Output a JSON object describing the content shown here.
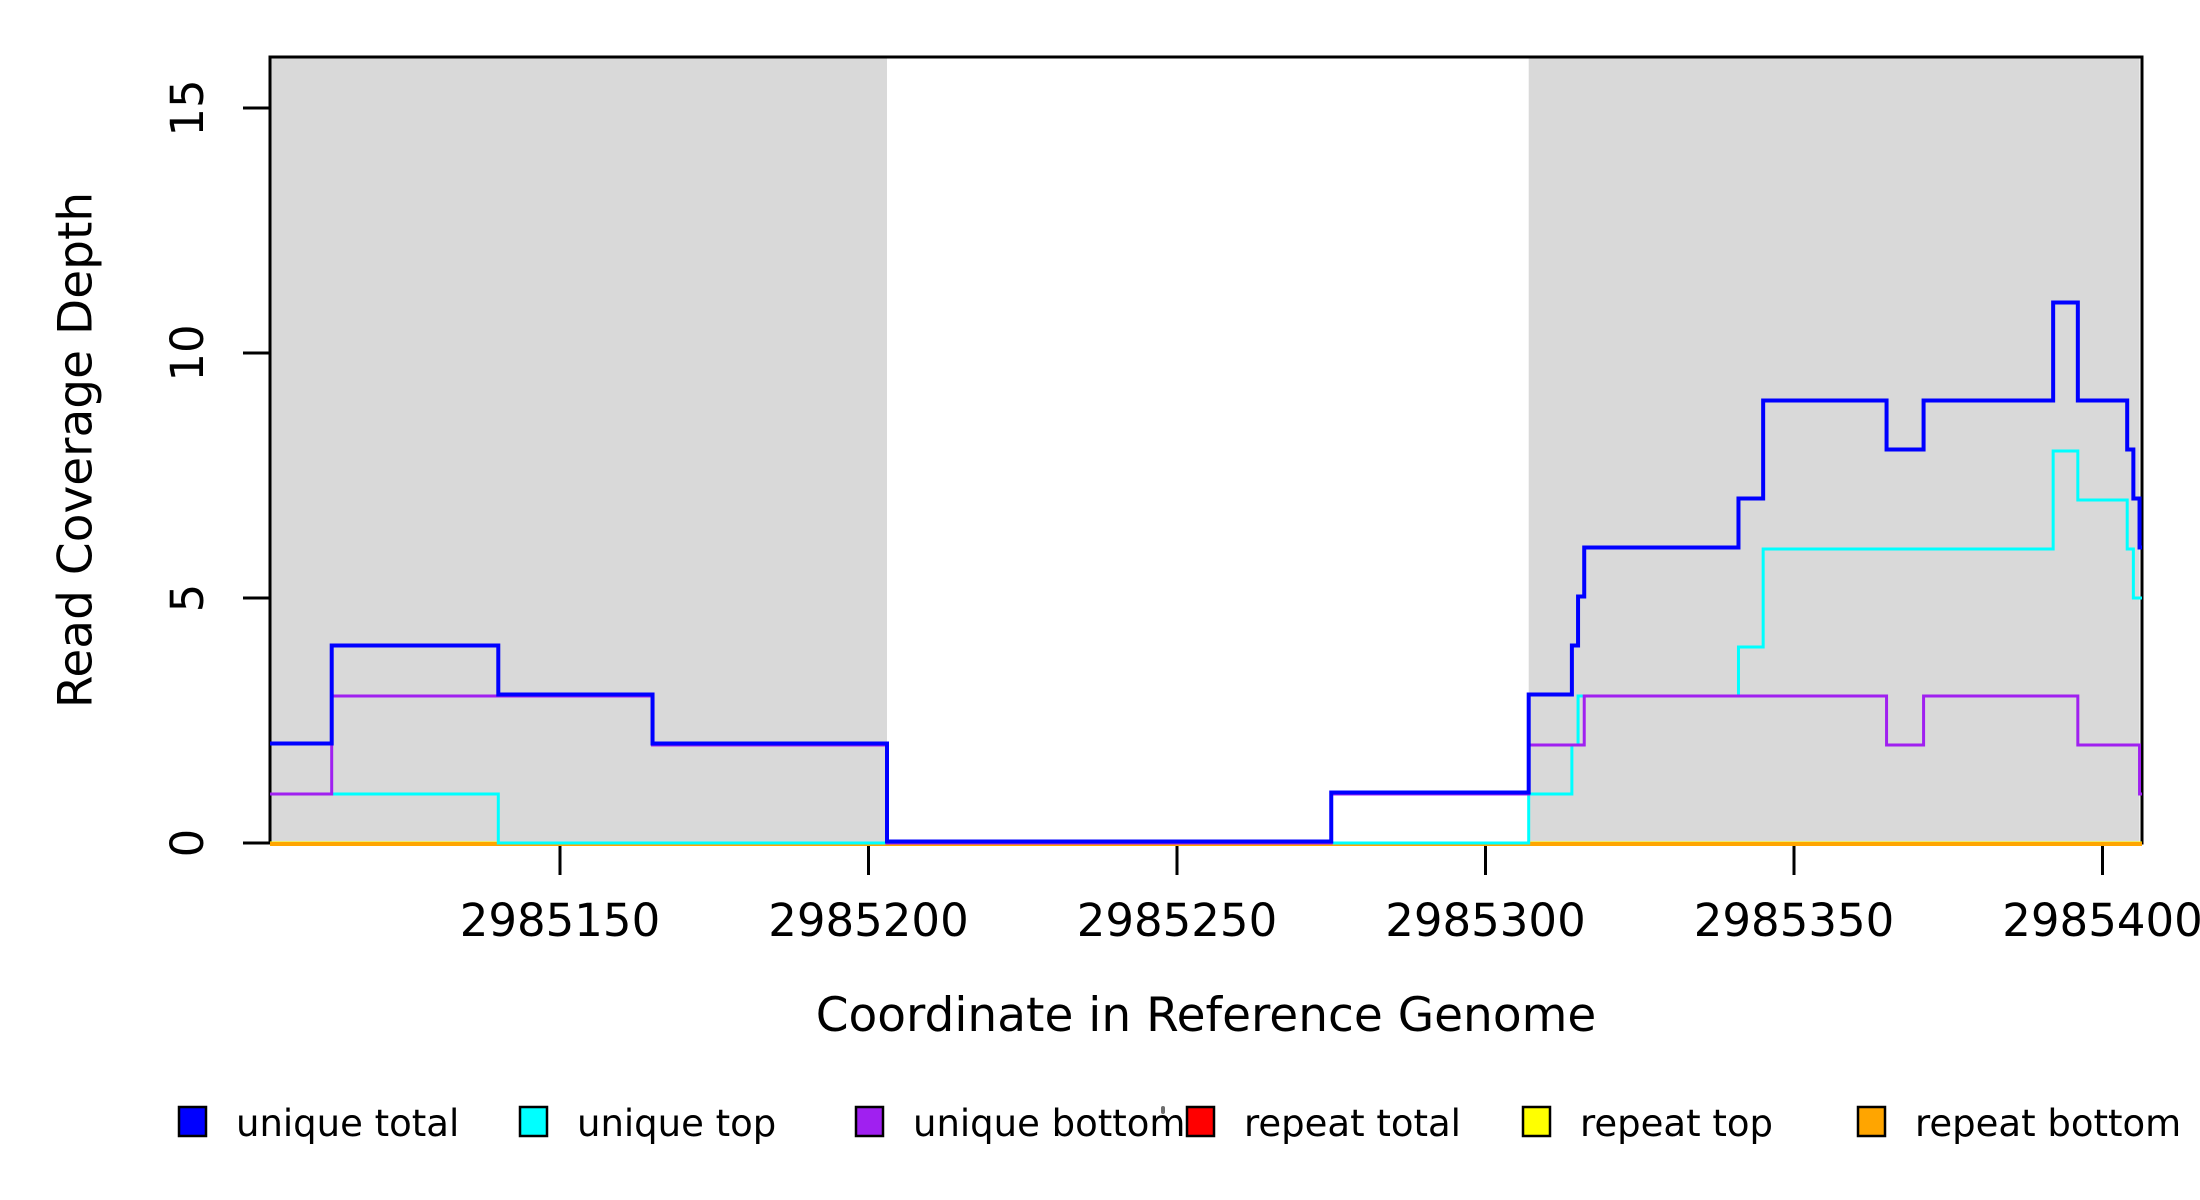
{
  "chart_data": {
    "type": "line",
    "subtype": "step-coverage",
    "title": "",
    "xlabel": "Coordinate in Reference Genome",
    "ylabel": "Read Coverage Depth",
    "xlim": [
      2985103,
      2985406
    ],
    "ylim": [
      0,
      16
    ],
    "x_ticks": [
      2985150,
      2985200,
      2985250,
      2985300,
      2985350,
      2985400
    ],
    "y_ticks": [
      0,
      5,
      10,
      15
    ],
    "grid": false,
    "background_color": "#ffffff",
    "shaded_region_color": "#d9d9d9",
    "shaded_regions": [
      {
        "name": "left-gray-block",
        "x_start": 2985103,
        "x_end": 2985203
      },
      {
        "name": "right-gray-block",
        "x_start": 2985307,
        "x_end": 2985406
      }
    ],
    "series": [
      {
        "name": "repeat total",
        "color": "#ff0000",
        "steps": [
          [
            2985103,
            0
          ]
        ]
      },
      {
        "name": "repeat top",
        "color": "#ffff00",
        "steps": [
          [
            2985103,
            0
          ]
        ]
      },
      {
        "name": "repeat bottom",
        "color": "#ffa500",
        "steps": [
          [
            2985103,
            0
          ]
        ]
      },
      {
        "name": "unique top",
        "color": "#00ffff",
        "steps": [
          [
            2985103,
            1
          ],
          [
            2985140,
            0
          ],
          [
            2985307,
            1
          ],
          [
            2985314,
            2
          ],
          [
            2985315,
            3
          ],
          [
            2985341,
            4
          ],
          [
            2985345,
            6
          ],
          [
            2985392,
            8
          ],
          [
            2985396,
            7
          ],
          [
            2985404,
            6
          ],
          [
            2985405,
            5
          ]
        ]
      },
      {
        "name": "unique bottom",
        "color": "#a020f0",
        "steps": [
          [
            2985103,
            1
          ],
          [
            2985113,
            3
          ],
          [
            2985165,
            2
          ],
          [
            2985203,
            0
          ],
          [
            2985275,
            1
          ],
          [
            2985307,
            2
          ],
          [
            2985316,
            3
          ],
          [
            2985365,
            2
          ],
          [
            2985371,
            3
          ],
          [
            2985396,
            2
          ],
          [
            2985406,
            1
          ]
        ]
      },
      {
        "name": "unique total",
        "color": "#0000ff",
        "steps": [
          [
            2985103,
            2
          ],
          [
            2985113,
            4
          ],
          [
            2985140,
            3
          ],
          [
            2985165,
            2
          ],
          [
            2985203,
            0
          ],
          [
            2985275,
            1
          ],
          [
            2985307,
            3
          ],
          [
            2985314,
            4
          ],
          [
            2985315,
            5
          ],
          [
            2985316,
            6
          ],
          [
            2985341,
            7
          ],
          [
            2985345,
            9
          ],
          [
            2985365,
            8
          ],
          [
            2985371,
            9
          ],
          [
            2985392,
            11
          ],
          [
            2985396,
            9
          ],
          [
            2985404,
            8
          ],
          [
            2985405,
            7
          ],
          [
            2985406,
            6
          ]
        ]
      }
    ],
    "legend": {
      "position": "bottom",
      "entries": [
        {
          "label": "unique total",
          "color": "#0000ff"
        },
        {
          "label": "unique top",
          "color": "#00ffff"
        },
        {
          "label": "unique bottom",
          "color": "#a020f0"
        },
        {
          "label": "repeat total",
          "color": "#ff0000"
        },
        {
          "label": "repeat top",
          "color": "#ffff00"
        },
        {
          "label": "repeat bottom",
          "color": "#ffa500"
        }
      ]
    }
  }
}
